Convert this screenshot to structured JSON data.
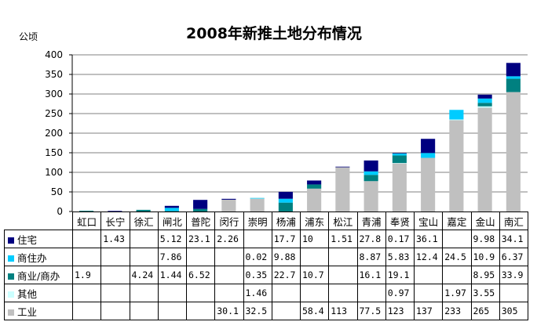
{
  "chart_data": {
    "type": "bar",
    "stacked": true,
    "title": "2008年新推土地分布情况",
    "ylabel": "公顷",
    "ylim": [
      0,
      400
    ],
    "yticks": [
      0,
      50,
      100,
      150,
      200,
      250,
      300,
      350,
      400
    ],
    "grid": true,
    "legend": "data-table-left",
    "categories": [
      "虹口",
      "长宁",
      "徐汇",
      "闸北",
      "普陀",
      "闵行",
      "崇明",
      "杨浦",
      "浦东",
      "松江",
      "青浦",
      "奉贤",
      "宝山",
      "嘉定",
      "金山",
      "南汇"
    ],
    "series": [
      {
        "name": "工业",
        "color": "#c0c0c0",
        "values": [
          null,
          null,
          null,
          null,
          null,
          30.1,
          32.5,
          null,
          58.4,
          113,
          77.5,
          123,
          137,
          233,
          265,
          305
        ],
        "labels": [
          "",
          "",
          "",
          "",
          "",
          "30.1",
          "32.5",
          "",
          "58.4",
          "113",
          "77.5",
          "123",
          "137",
          "233",
          "265",
          "305"
        ]
      },
      {
        "name": "其他",
        "color": "#ccffff",
        "values": [
          null,
          null,
          null,
          null,
          null,
          null,
          1.46,
          null,
          null,
          null,
          null,
          0.97,
          null,
          1.97,
          3.55,
          null
        ],
        "labels": [
          "",
          "",
          "",
          "",
          "",
          "",
          "1.46",
          "",
          "",
          "",
          "",
          "0.97",
          "",
          "1.97",
          "3.55",
          ""
        ]
      },
      {
        "name": "商业/商办",
        "color": "#008080",
        "values": [
          1.9,
          null,
          4.24,
          1.44,
          6.52,
          null,
          0.35,
          22.7,
          10.7,
          null,
          16.1,
          19.1,
          null,
          null,
          8.95,
          33.9
        ],
        "labels": [
          "1.9",
          "",
          "4.24",
          "1.44",
          "6.52",
          "",
          "0.35",
          "22.7",
          "10.7",
          "",
          "16.1",
          "19.1",
          "",
          "",
          "8.95",
          "33.9"
        ]
      },
      {
        "name": "商住办",
        "color": "#00ccff",
        "values": [
          null,
          null,
          null,
          7.86,
          null,
          null,
          0.02,
          9.88,
          null,
          null,
          8.87,
          5.83,
          12.4,
          24.5,
          10.9,
          6.37
        ],
        "labels": [
          "",
          "",
          "",
          "7.86",
          "",
          "",
          "0.02",
          "9.88",
          "",
          "",
          "8.87",
          "5.83",
          "12.4",
          "24.5",
          "10.9",
          "6.37"
        ]
      },
      {
        "name": "住宅",
        "color": "#000080",
        "values": [
          null,
          1.43,
          null,
          5.12,
          23.1,
          2.26,
          null,
          17.7,
          10,
          1.51,
          27.8,
          0.17,
          36.1,
          null,
          9.98,
          34.1
        ],
        "labels": [
          "",
          "1.43",
          "",
          "5.12",
          "23.1",
          "2.26",
          "",
          "17.7",
          "10",
          "1.51",
          "27.8",
          "0.17",
          "36.1",
          "",
          "9.98",
          "34.1"
        ]
      }
    ],
    "table_row_order": [
      "住宅",
      "商住办",
      "商业/商办",
      "其他",
      "工业"
    ]
  }
}
